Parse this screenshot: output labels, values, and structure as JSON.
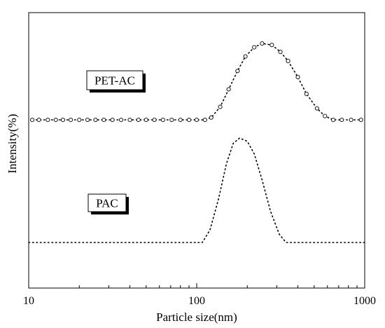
{
  "chart_data": {
    "type": "line",
    "xlabel": "Particle size(nm)",
    "ylabel": "Intensity(%)",
    "xscale": "log",
    "xlim": [
      10,
      1000
    ],
    "x_ticks": [
      "10",
      "100",
      "1000"
    ],
    "y_ticks": "none",
    "grid": false,
    "series": [
      {
        "name": "PET-AC",
        "style": "dotted line with open circle markers",
        "label_box": "PET-AC",
        "baseline": 0,
        "points": [
          [
            10.5,
            0
          ],
          [
            11.5,
            0
          ],
          [
            13.0,
            0
          ],
          [
            14.5,
            0
          ],
          [
            16.0,
            0
          ],
          [
            17.8,
            0
          ],
          [
            20.0,
            0
          ],
          [
            22.4,
            0
          ],
          [
            25.0,
            0
          ],
          [
            28.0,
            0
          ],
          [
            31.5,
            0
          ],
          [
            35.5,
            0
          ],
          [
            40.0,
            0
          ],
          [
            45.0,
            0
          ],
          [
            50.0,
            0
          ],
          [
            56.0,
            0
          ],
          [
            63.0,
            0
          ],
          [
            71.0,
            0
          ],
          [
            80.0,
            0
          ],
          [
            90.0,
            0
          ],
          [
            100.0,
            0
          ],
          [
            112.0,
            0
          ],
          [
            122.0,
            0.03
          ],
          [
            138.0,
            0.17
          ],
          [
            155.0,
            0.4
          ],
          [
            175.0,
            0.64
          ],
          [
            195.0,
            0.83
          ],
          [
            220.0,
            0.95
          ],
          [
            245.0,
            1.0
          ],
          [
            280.0,
            0.98
          ],
          [
            315.0,
            0.89
          ],
          [
            350.0,
            0.77
          ],
          [
            400.0,
            0.56
          ],
          [
            450.0,
            0.34
          ],
          [
            520.0,
            0.15
          ],
          [
            580.0,
            0.05
          ],
          [
            650.0,
            0.0
          ],
          [
            730.0,
            0
          ],
          [
            830.0,
            0
          ],
          [
            950.0,
            0
          ]
        ]
      },
      {
        "name": "PAC",
        "style": "dotted line",
        "label_box": "PAC",
        "baseline": 0,
        "points": [
          [
            10.0,
            0
          ],
          [
            100.0,
            0
          ],
          [
            108.0,
            0.0
          ],
          [
            120.0,
            0.12
          ],
          [
            135.0,
            0.42
          ],
          [
            150.0,
            0.75
          ],
          [
            165.0,
            0.95
          ],
          [
            180.0,
            1.0
          ],
          [
            200.0,
            0.97
          ],
          [
            220.0,
            0.85
          ],
          [
            245.0,
            0.6
          ],
          [
            275.0,
            0.3
          ],
          [
            310.0,
            0.08
          ],
          [
            340.0,
            0.0
          ],
          [
            400.0,
            0
          ],
          [
            600.0,
            0
          ],
          [
            1000.0,
            0
          ]
        ]
      }
    ]
  }
}
